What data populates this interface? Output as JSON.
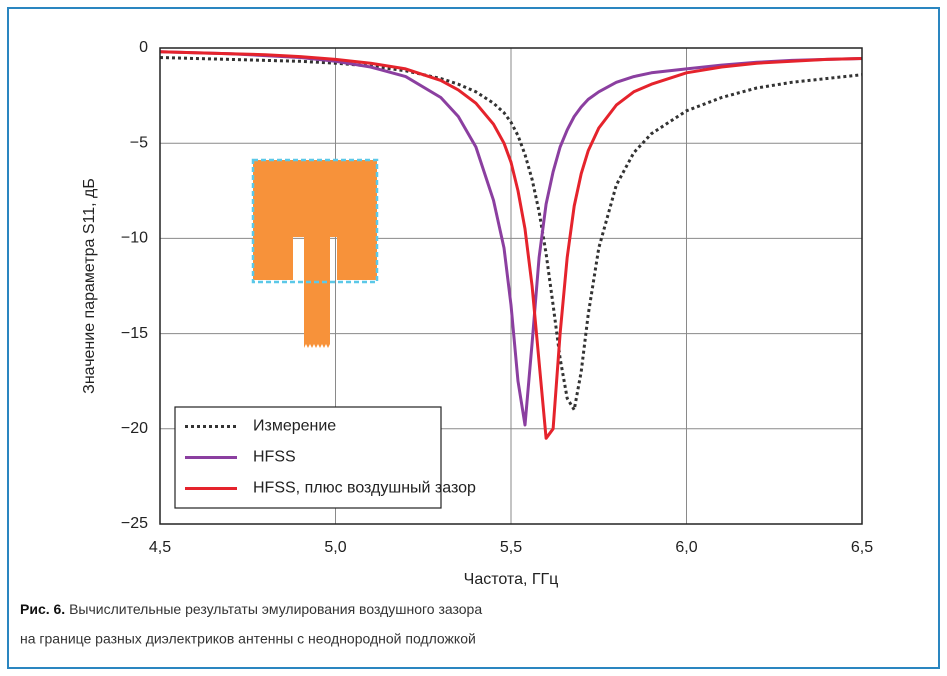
{
  "chart_data": {
    "type": "line",
    "xlabel": "Частота, ГГц",
    "ylabel": "Значение параметра S11, дБ",
    "x": [
      4.5,
      4.6,
      4.7,
      4.8,
      4.9,
      5.0,
      5.1,
      5.2,
      5.3,
      5.35,
      5.4,
      5.45,
      5.48,
      5.5,
      5.52,
      5.54,
      5.56,
      5.58,
      5.6,
      5.62,
      5.64,
      5.66,
      5.68,
      5.7,
      5.72,
      5.75,
      5.8,
      5.85,
      5.9,
      6.0,
      6.1,
      6.2,
      6.3,
      6.4,
      6.5
    ],
    "series": [
      {
        "name": "Измерение",
        "color": "#333333",
        "line_style": "dotted",
        "values": [
          -0.5,
          -0.55,
          -0.6,
          -0.65,
          -0.7,
          -0.8,
          -0.95,
          -1.2,
          -1.6,
          -1.9,
          -2.3,
          -2.9,
          -3.4,
          -3.9,
          -4.6,
          -5.6,
          -6.9,
          -8.6,
          -10.8,
          -13.5,
          -16.3,
          -18.4,
          -19.0,
          -17.0,
          -14.0,
          -10.5,
          -7.2,
          -5.5,
          -4.5,
          -3.3,
          -2.6,
          -2.1,
          -1.8,
          -1.6,
          -1.4
        ]
      },
      {
        "name": "HFSS",
        "color": "#8b3fa0",
        "line_style": "solid",
        "values": [
          -0.2,
          -0.25,
          -0.3,
          -0.4,
          -0.5,
          -0.7,
          -1.0,
          -1.5,
          -2.6,
          -3.6,
          -5.2,
          -8.0,
          -10.5,
          -13.5,
          -17.5,
          -19.8,
          -15.5,
          -11.0,
          -8.2,
          -6.5,
          -5.2,
          -4.3,
          -3.6,
          -3.1,
          -2.7,
          -2.3,
          -1.8,
          -1.5,
          -1.3,
          -1.1,
          -0.9,
          -0.75,
          -0.65,
          -0.6,
          -0.55
        ]
      },
      {
        "name": "HFSS, плюс воздушный зазор",
        "color": "#e5232c",
        "line_style": "solid",
        "values": [
          -0.2,
          -0.25,
          -0.3,
          -0.35,
          -0.45,
          -0.6,
          -0.8,
          -1.1,
          -1.7,
          -2.2,
          -2.9,
          -4.0,
          -5.0,
          -6.0,
          -7.5,
          -9.5,
          -12.5,
          -16.5,
          -20.5,
          -20.0,
          -15.0,
          -11.0,
          -8.3,
          -6.6,
          -5.4,
          -4.2,
          -3.0,
          -2.3,
          -1.9,
          -1.3,
          -1.0,
          -0.8,
          -0.7,
          -0.6,
          -0.55
        ]
      }
    ],
    "xlim": [
      4.5,
      6.5
    ],
    "xticks": [
      {
        "value": 4.5,
        "label": "4,5"
      },
      {
        "value": 5.0,
        "label": "5,0"
      },
      {
        "value": 5.5,
        "label": "5,5"
      },
      {
        "value": 6.0,
        "label": "6,0"
      },
      {
        "value": 6.5,
        "label": "6,5"
      }
    ],
    "ylim": [
      -25,
      0
    ],
    "yticks": [
      0,
      {
        "value": -5,
        "label": "−5"
      },
      {
        "value": -10,
        "label": "−10"
      },
      {
        "value": -15,
        "label": "−15"
      },
      {
        "value": -20,
        "label": "−20"
      },
      {
        "value": -25,
        "label": "−25"
      }
    ],
    "grid": true,
    "legend": "lower left",
    "caption": {
      "label": "Рис. 6.",
      "lines": [
        "Вычислительные результаты эмулирования воздушного зазора",
        "на границе разных диэлектриков антенны с неоднородной подложкой"
      ]
    }
  }
}
